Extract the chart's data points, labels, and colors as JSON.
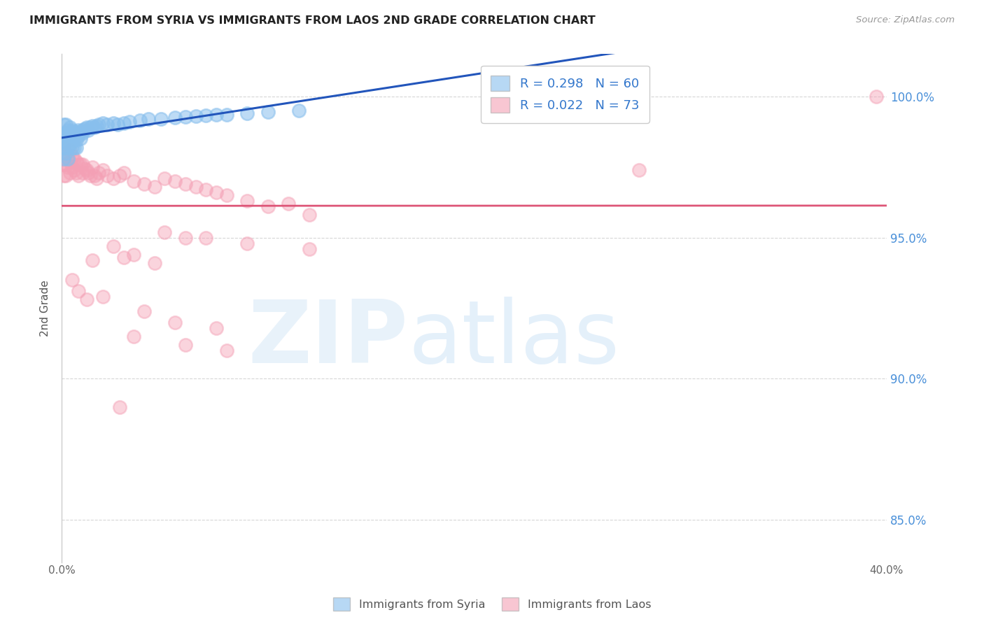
{
  "title": "IMMIGRANTS FROM SYRIA VS IMMIGRANTS FROM LAOS 2ND GRADE CORRELATION CHART",
  "source": "Source: ZipAtlas.com",
  "ylabel": "2nd Grade",
  "xlim": [
    0.0,
    0.4
  ],
  "ylim": [
    0.835,
    1.015
  ],
  "yticks": [
    0.85,
    0.9,
    0.95,
    1.0
  ],
  "yticklabels": [
    "85.0%",
    "90.0%",
    "95.0%",
    "100.0%"
  ],
  "legend_syria": "Immigrants from Syria",
  "legend_laos": "Immigrants from Laos",
  "R_syria": 0.298,
  "N_syria": 60,
  "R_laos": 0.022,
  "N_laos": 73,
  "color_syria": "#88bfed",
  "color_laos": "#f4a0b5",
  "line_color_syria": "#2255bb",
  "line_color_laos": "#dd5577",
  "background_color": "#ffffff",
  "syria_x": [
    0.0005,
    0.0007,
    0.001,
    0.001,
    0.001,
    0.001,
    0.0015,
    0.0015,
    0.002,
    0.002,
    0.002,
    0.002,
    0.003,
    0.003,
    0.003,
    0.003,
    0.004,
    0.004,
    0.004,
    0.005,
    0.005,
    0.005,
    0.006,
    0.006,
    0.006,
    0.007,
    0.007,
    0.007,
    0.008,
    0.008,
    0.009,
    0.009,
    0.01,
    0.01,
    0.011,
    0.012,
    0.013,
    0.014,
    0.015,
    0.016,
    0.017,
    0.018,
    0.02,
    0.022,
    0.025,
    0.027,
    0.03,
    0.033,
    0.038,
    0.042,
    0.048,
    0.055,
    0.06,
    0.065,
    0.07,
    0.075,
    0.08,
    0.09,
    0.1,
    0.115
  ],
  "syria_y": [
    0.982,
    0.984,
    0.99,
    0.986,
    0.982,
    0.978,
    0.987,
    0.985,
    0.99,
    0.987,
    0.984,
    0.98,
    0.988,
    0.986,
    0.982,
    0.978,
    0.989,
    0.986,
    0.983,
    0.988,
    0.985,
    0.982,
    0.9875,
    0.985,
    0.982,
    0.987,
    0.9845,
    0.982,
    0.988,
    0.986,
    0.9875,
    0.985,
    0.988,
    0.987,
    0.9885,
    0.989,
    0.988,
    0.989,
    0.9895,
    0.989,
    0.9895,
    0.99,
    0.9905,
    0.99,
    0.9905,
    0.99,
    0.9905,
    0.991,
    0.9915,
    0.992,
    0.992,
    0.9925,
    0.9928,
    0.993,
    0.9932,
    0.9935,
    0.9935,
    0.994,
    0.9945,
    0.995
  ],
  "laos_x": [
    0.0005,
    0.001,
    0.001,
    0.001,
    0.002,
    0.002,
    0.002,
    0.003,
    0.003,
    0.004,
    0.004,
    0.004,
    0.005,
    0.005,
    0.006,
    0.006,
    0.007,
    0.007,
    0.008,
    0.008,
    0.009,
    0.01,
    0.01,
    0.011,
    0.012,
    0.013,
    0.014,
    0.015,
    0.016,
    0.017,
    0.018,
    0.02,
    0.022,
    0.025,
    0.028,
    0.03,
    0.035,
    0.04,
    0.045,
    0.05,
    0.055,
    0.06,
    0.065,
    0.07,
    0.075,
    0.08,
    0.09,
    0.1,
    0.11,
    0.12,
    0.05,
    0.06,
    0.09,
    0.12,
    0.07,
    0.035,
    0.025,
    0.015,
    0.03,
    0.045,
    0.005,
    0.008,
    0.012,
    0.02,
    0.04,
    0.055,
    0.075,
    0.035,
    0.06,
    0.08,
    0.028,
    0.28,
    0.395
  ],
  "laos_y": [
    0.978,
    0.982,
    0.976,
    0.972,
    0.98,
    0.976,
    0.972,
    0.979,
    0.975,
    0.981,
    0.977,
    0.973,
    0.979,
    0.975,
    0.978,
    0.974,
    0.977,
    0.973,
    0.976,
    0.972,
    0.976,
    0.976,
    0.973,
    0.9745,
    0.974,
    0.973,
    0.972,
    0.975,
    0.972,
    0.971,
    0.973,
    0.974,
    0.972,
    0.971,
    0.972,
    0.973,
    0.97,
    0.969,
    0.968,
    0.971,
    0.97,
    0.969,
    0.968,
    0.967,
    0.966,
    0.965,
    0.963,
    0.961,
    0.962,
    0.958,
    0.952,
    0.95,
    0.948,
    0.946,
    0.95,
    0.944,
    0.947,
    0.942,
    0.943,
    0.941,
    0.935,
    0.931,
    0.928,
    0.929,
    0.924,
    0.92,
    0.918,
    0.915,
    0.912,
    0.91,
    0.89,
    0.974,
    1.0
  ]
}
